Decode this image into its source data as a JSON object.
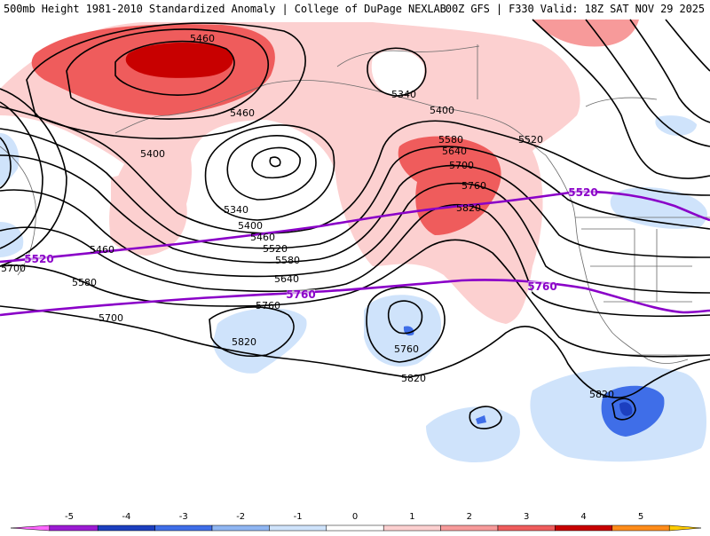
{
  "header": {
    "title": "500mb Height 1981-2010 Standardized Anomaly | College of DuPage NEXLAB",
    "run_info": "00Z GFS | F330 Valid: 18Z SAT NOV 29 2025"
  },
  "colorbar": {
    "ticks": [
      "-5",
      "-4",
      "-3",
      "-2",
      "-1",
      "0",
      "1",
      "2",
      "3",
      "4",
      "5"
    ],
    "colors": [
      "#9b1bd3",
      "#1c3fbf",
      "#3f6ee8",
      "#8fb6f2",
      "#cfe3fb",
      "#ffffff",
      "#fcd0d0",
      "#f79a9a",
      "#ef5c5c",
      "#c80000",
      "#ff8c1a"
    ],
    "end_left_color": "#ff66ff",
    "end_right_color": "#ffcc00"
  },
  "contour_labels": {
    "height_labels": [
      "5460",
      "5340",
      "5400",
      "5460",
      "5520",
      "5400",
      "5580",
      "5640",
      "5700",
      "5760",
      "5820",
      "5340",
      "5400",
      "5460",
      "5520",
      "5580",
      "5640",
      "5700",
      "5460",
      "5580",
      "5700",
      "5820",
      "5760",
      "5760",
      "5820",
      "5820"
    ],
    "highlight_labels": [
      "5520",
      "5520",
      "5760",
      "5760"
    ],
    "highlight_color": "#8a00c8",
    "line_color": "#000000",
    "border_color": "#6a6a6a"
  }
}
